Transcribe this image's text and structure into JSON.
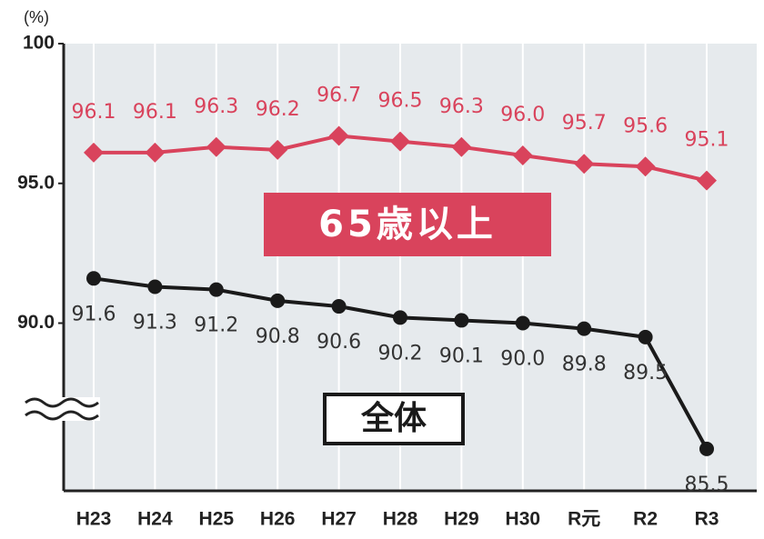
{
  "chart_data": {
    "type": "line",
    "y_label": "(%)",
    "categories": [
      "H23",
      "H24",
      "H25",
      "H26",
      "H27",
      "H28",
      "H29",
      "H30",
      "R元",
      "R2",
      "R3"
    ],
    "series": [
      {
        "name": "65歳以上",
        "color": "#d9435c",
        "marker": "diamond",
        "values": [
          96.1,
          96.1,
          96.3,
          96.2,
          96.7,
          96.5,
          96.3,
          96.0,
          95.7,
          95.6,
          95.1
        ],
        "value_labels": [
          "96.1",
          "96.1",
          "96.3",
          "96.2",
          "96.7",
          "96.5",
          "96.3",
          "96.0",
          "95.7",
          "95.6",
          "95.1"
        ]
      },
      {
        "name": "全体",
        "color": "#1a1a1a",
        "marker": "circle",
        "values": [
          91.6,
          91.3,
          91.2,
          90.8,
          90.6,
          90.2,
          90.1,
          90.0,
          89.8,
          89.5,
          85.5
        ],
        "value_labels": [
          "91.6",
          "91.3",
          "91.2",
          "90.8",
          "90.6",
          "90.2",
          "90.1",
          "90.0",
          "89.8",
          "89.5",
          "85.5"
        ]
      }
    ],
    "ylim": [
      84,
      100
    ],
    "yticks": [
      100,
      {
        "value": 95,
        "label": "95.0"
      },
      {
        "value": 90,
        "label": "90.0"
      }
    ]
  }
}
